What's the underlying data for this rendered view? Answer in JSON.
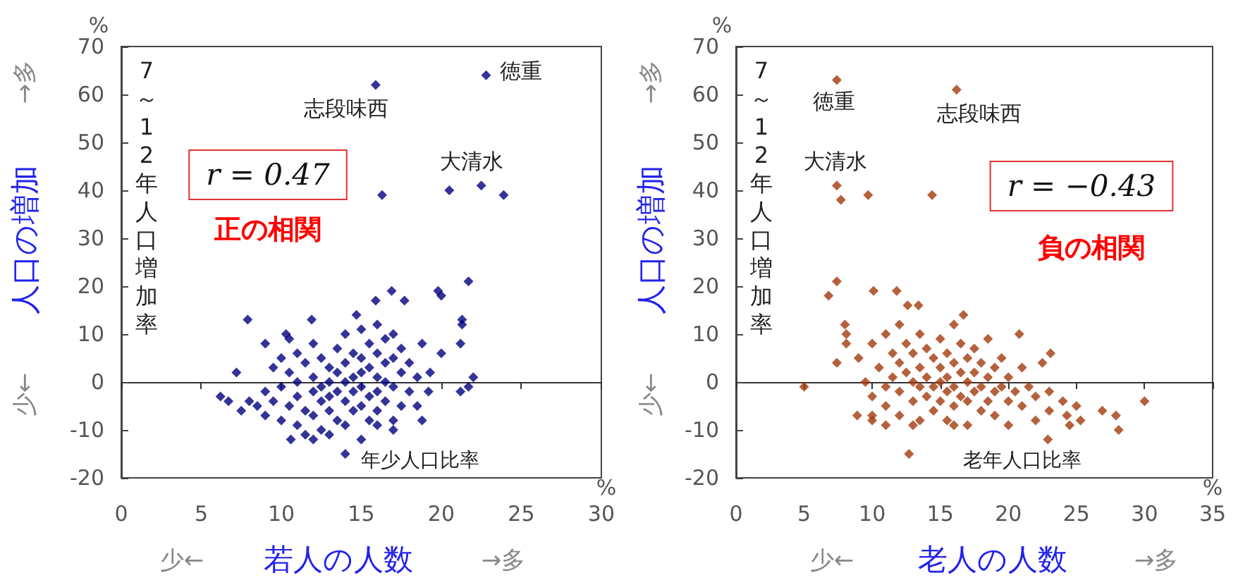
{
  "chart_data": [
    {
      "type": "scatter",
      "marker": "diamond",
      "xlabel": "若人の人数",
      "ylabel": "人口の増加",
      "xlim": [
        0,
        30
      ],
      "xticks": [
        0,
        5,
        10,
        15,
        20,
        25,
        30
      ],
      "ylim": [
        -20,
        70
      ],
      "yticks": [
        -20,
        -10,
        0,
        10,
        20,
        30,
        40,
        50,
        60,
        70
      ],
      "annotations": [
        "%",
        "%",
        "7～12年人口増加率",
        "年少人口比率",
        "r = 0.47",
        "正の相関",
        "少←",
        "→多",
        "少←",
        "→多",
        {
          "text": "徳重",
          "x": 22.8,
          "y": 64
        },
        {
          "text": "志段味西",
          "x": 15.9,
          "y": 62
        },
        {
          "text": "大清水",
          "x": 22.5,
          "y": 41
        }
      ],
      "series": [
        {
          "color": "#000080",
          "x": [
            22.8,
            15.9,
            16.3,
            20.5,
            22.5,
            23.9,
            21.7,
            19.8,
            20.0,
            21.3,
            21.3,
            21.2,
            20.0,
            22.0,
            21.7,
            21.2,
            7.9,
            7.2,
            6.2,
            6.7,
            14.0,
            10.6,
            18.8,
            16.9,
            15.9,
            17.7,
            14.7,
            11.9,
            10.3,
            18.8,
            19.3,
            19.2,
            8.5,
            9,
            9,
            9.5,
            9.5,
            10,
            10,
            10,
            10.5,
            10.5,
            11,
            11,
            11,
            11,
            11.5,
            11.5,
            12,
            12,
            12,
            12,
            12.5,
            12.5,
            12.5,
            12.5,
            13,
            13,
            13,
            13,
            13.5,
            13.5,
            13.5,
            13.5,
            14,
            14,
            14,
            14,
            14,
            14.5,
            14.5,
            14.5,
            14.5,
            15,
            15,
            15,
            15,
            15,
            15.5,
            15.5,
            15.5,
            15.5,
            16,
            16,
            16,
            16,
            16,
            16.5,
            16.5,
            16.5,
            16.5,
            17,
            17,
            17,
            17,
            17.5,
            17.5,
            17.5,
            18,
            18,
            18.5,
            18.5,
            9,
            10.5,
            8,
            7.5,
            11.5,
            12,
            13,
            16,
            17,
            15
          ],
          "values": [
            64,
            62,
            39,
            40,
            41,
            39,
            21,
            19,
            18,
            13,
            12,
            8,
            6,
            1,
            -1,
            -2,
            13,
            2,
            -3,
            -4,
            -15,
            -12,
            -8,
            19,
            17,
            17,
            14,
            13,
            10,
            8,
            2,
            -2,
            -5,
            -2,
            -7,
            3,
            -4,
            5,
            -1,
            -8,
            2,
            -5,
            6,
            0,
            -3,
            -9,
            4,
            -6,
            8,
            1,
            -2,
            -7,
            5,
            -1,
            -4,
            -10,
            3,
            0,
            -3,
            -6,
            7,
            2,
            -2,
            -8,
            10,
            4,
            0,
            -4,
            -9,
            6,
            1,
            -2,
            -6,
            11,
            5,
            2,
            -1,
            -5,
            8,
            3,
            -3,
            -8,
            12,
            6,
            1,
            -2,
            -6,
            9,
            4,
            0,
            -4,
            10,
            5,
            -1,
            -8,
            7,
            2,
            -5,
            4,
            -2,
            1,
            -5,
            8,
            9,
            -4,
            -6,
            -11,
            -12,
            -11,
            -9,
            -10,
            -12
          ]
        }
      ]
    },
    {
      "type": "scatter",
      "marker": "diamond",
      "xlabel": "老人の人数",
      "ylabel": "人口の増加",
      "xlim": [
        0,
        35
      ],
      "xticks": [
        0,
        5,
        10,
        15,
        20,
        25,
        30,
        35
      ],
      "ylim": [
        -20,
        70
      ],
      "yticks": [
        -20,
        -10,
        0,
        10,
        20,
        30,
        40,
        50,
        60,
        70
      ],
      "annotations": [
        "%",
        "%",
        "7～12年人口増加率",
        "老年人口比率",
        "r = −0.43",
        "負の相関",
        "少←",
        "→多",
        "少←",
        "→多",
        {
          "text": "徳重",
          "x": 7.4,
          "y": 63
        },
        {
          "text": "志段味西",
          "x": 16.2,
          "y": 61
        },
        {
          "text": "大清水",
          "x": 7.4,
          "y": 41
        }
      ],
      "series": [
        {
          "color": "#a33a0c",
          "x": [
            7.4,
            16.2,
            7.4,
            7.7,
            9.7,
            14.4,
            7.4,
            6.8,
            8.0,
            8.1,
            8.1,
            7.4,
            5.0,
            30.0,
            28.1,
            27.9,
            22.9,
            12.7,
            10.1,
            11.8,
            12.6,
            13.4,
            16.7,
            20.8,
            23.1,
            8.9,
            10.0,
            26.9,
            25.3,
            24.3,
            9,
            9.5,
            10,
            10,
            10.5,
            11,
            11,
            11,
            11.5,
            11.5,
            12,
            12,
            12,
            12,
            12.5,
            12.5,
            13,
            13,
            13,
            13.5,
            13.5,
            13.5,
            13.5,
            14,
            14,
            14,
            14.5,
            14.5,
            14.5,
            15,
            15,
            15,
            15,
            15.5,
            15.5,
            15.5,
            15.5,
            16,
            16,
            16,
            16,
            16.5,
            16.5,
            16.5,
            17,
            17,
            17,
            17,
            17.5,
            17.5,
            17.5,
            18,
            18,
            18,
            18.5,
            18.5,
            18.5,
            19,
            19,
            19,
            19.5,
            19.5,
            20,
            20,
            20,
            20.5,
            21,
            21,
            21.5,
            22,
            22,
            22.5,
            23,
            23,
            24,
            24.5,
            25,
            10,
            11,
            13,
            16
          ],
          "values": [
            63,
            61,
            41,
            38,
            39,
            39,
            21,
            18,
            12,
            10,
            8,
            4,
            -1,
            -4,
            -10,
            -7,
            -12,
            -15,
            19,
            19,
            16,
            16,
            14,
            10,
            6,
            -7,
            -8,
            -6,
            -8,
            -7,
            5,
            0,
            8,
            -3,
            3,
            10,
            -1,
            -5,
            6,
            1,
            12,
            4,
            -2,
            -7,
            8,
            2,
            6,
            0,
            -4,
            10,
            3,
            -1,
            -8,
            7,
            1,
            -3,
            5,
            -1,
            -6,
            9,
            3,
            0,
            -4,
            6,
            1,
            -2,
            -8,
            12,
            4,
            -1,
            -5,
            8,
            2,
            -3,
            5,
            0,
            -4,
            -9,
            7,
            2,
            -2,
            4,
            -1,
            -6,
            9,
            1,
            -4,
            3,
            -2,
            -7,
            5,
            -1,
            1,
            -4,
            -9,
            -2,
            3,
            -5,
            -1,
            -3,
            -8,
            4,
            -2,
            -6,
            -4,
            -9,
            -5,
            -7,
            -9,
            -9,
            -9
          ]
        }
      ]
    }
  ]
}
